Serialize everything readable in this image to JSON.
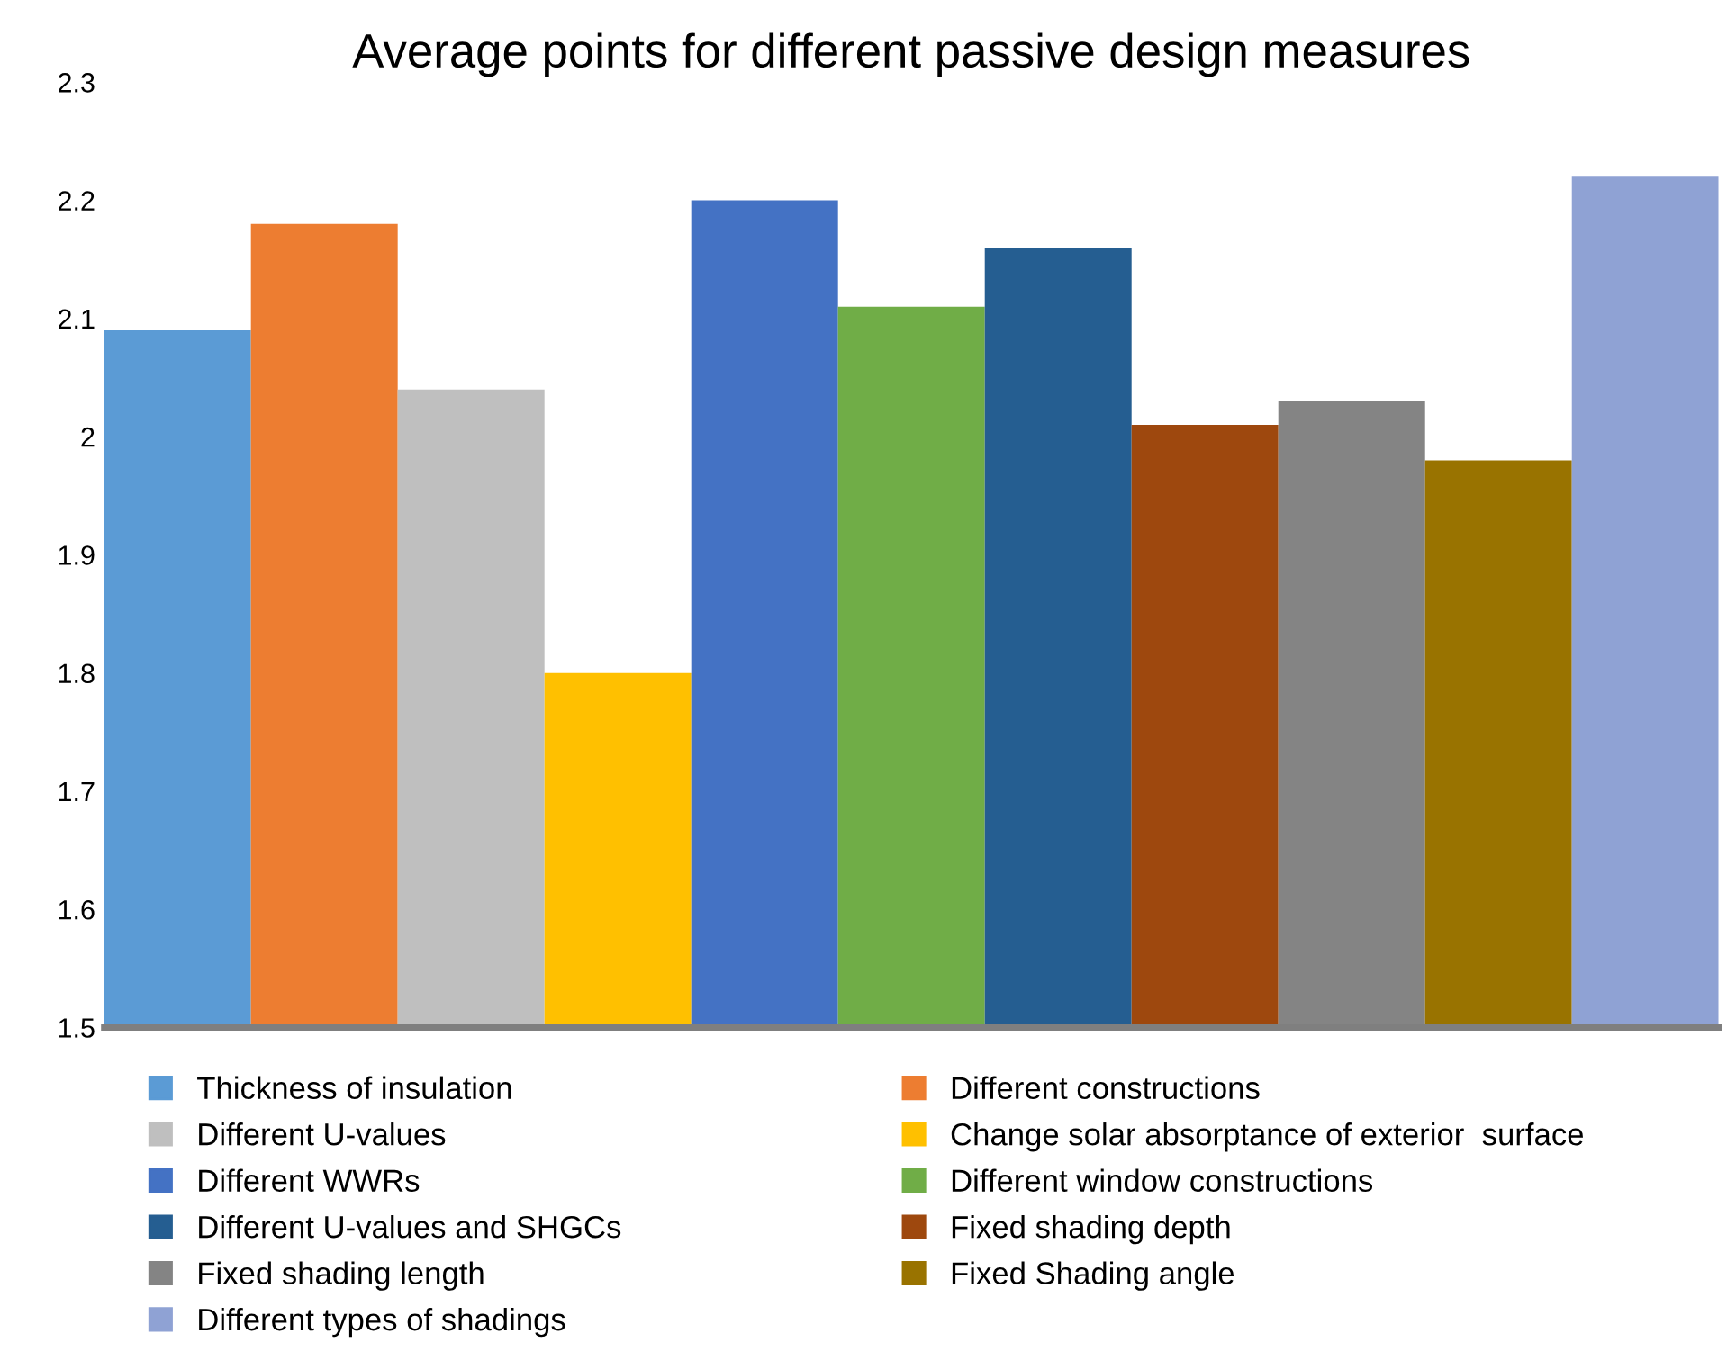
{
  "chart_data": {
    "type": "bar",
    "title": "Average points for different passive design measures",
    "categories": [
      null,
      null,
      null,
      null,
      null,
      null,
      null,
      null,
      null,
      null,
      null
    ],
    "series": [
      {
        "name": "Thickness of insulation",
        "color": "#5b9bd5",
        "values": [
          2.09,
          null,
          null,
          null,
          null,
          null,
          null,
          null,
          null,
          null,
          null
        ]
      },
      {
        "name": "Different constructions",
        "color": "#ed7d31",
        "values": [
          null,
          2.18,
          null,
          null,
          null,
          null,
          null,
          null,
          null,
          null,
          null
        ]
      },
      {
        "name": "Different U-values",
        "color": "#bfbfbf",
        "values": [
          null,
          null,
          2.04,
          null,
          null,
          null,
          null,
          null,
          null,
          null,
          null
        ]
      },
      {
        "name": "Change solar absorptance of exterior  surface",
        "color": "#ffc000",
        "values": [
          null,
          null,
          null,
          1.8,
          null,
          null,
          null,
          null,
          null,
          null,
          null
        ]
      },
      {
        "name": "Different WWRs",
        "color": "#4472c4",
        "values": [
          null,
          null,
          null,
          null,
          2.2,
          null,
          null,
          null,
          null,
          null,
          null
        ]
      },
      {
        "name": "Different window constructions",
        "color": "#70ad47",
        "values": [
          null,
          null,
          null,
          null,
          null,
          2.11,
          null,
          null,
          null,
          null,
          null
        ]
      },
      {
        "name": "Different U-values and SHGCs",
        "color": "#255e91",
        "values": [
          null,
          null,
          null,
          null,
          null,
          null,
          2.16,
          null,
          null,
          null,
          null
        ]
      },
      {
        "name": "Fixed shading depth",
        "color": "#9e480e",
        "values": [
          null,
          null,
          null,
          null,
          null,
          null,
          null,
          2.01,
          null,
          null,
          null
        ]
      },
      {
        "name": "Fixed shading length",
        "color": "#848484",
        "values": [
          null,
          null,
          null,
          null,
          null,
          null,
          null,
          null,
          2.03,
          null,
          null
        ]
      },
      {
        "name": "Fixed Shading angle",
        "color": "#997300",
        "values": [
          null,
          null,
          null,
          null,
          null,
          null,
          null,
          null,
          null,
          1.98,
          null
        ]
      },
      {
        "name": "Different types of shadings",
        "color": "#8fa2d4",
        "values": [
          null,
          null,
          null,
          null,
          null,
          null,
          null,
          null,
          null,
          null,
          2.22
        ]
      }
    ],
    "ylim": [
      1.5,
      2.3
    ],
    "yticks": [
      1.5,
      1.6,
      1.7,
      1.8,
      1.9,
      2,
      2.1,
      2.2,
      2.3
    ],
    "grid": false,
    "legend": "bottom"
  }
}
